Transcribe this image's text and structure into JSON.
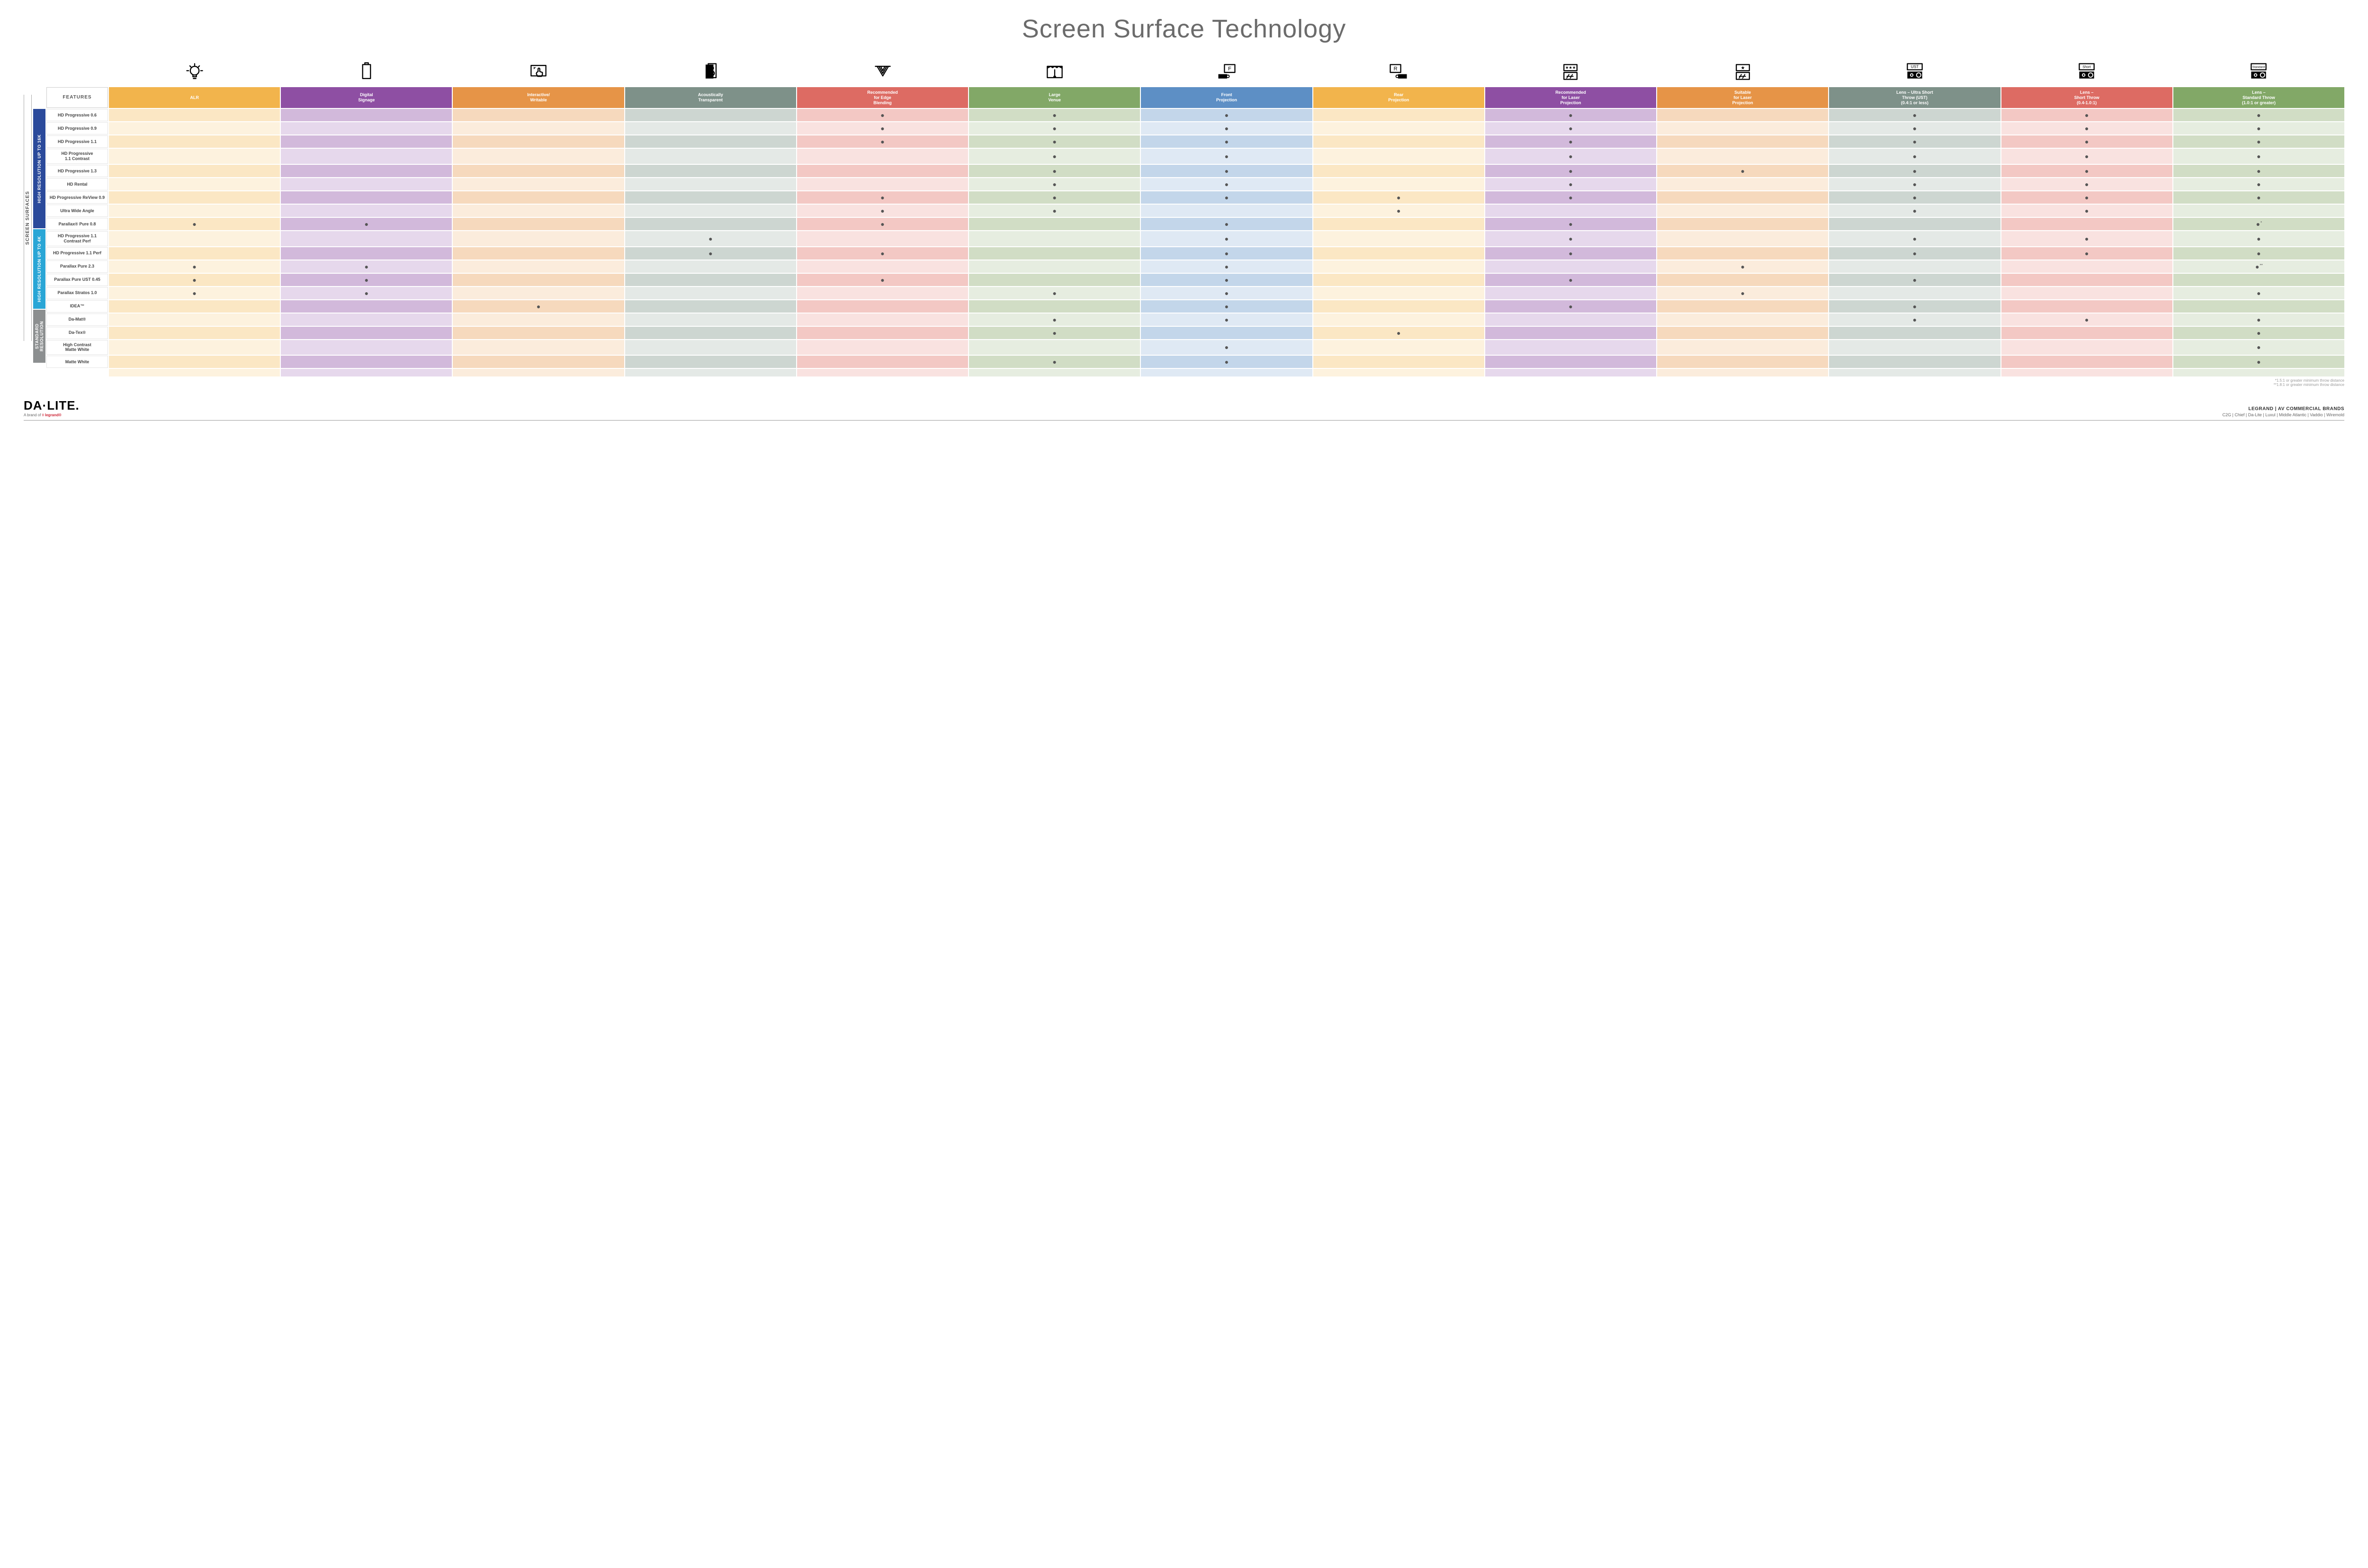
{
  "title": "Screen Surface Technology",
  "outer_label": "SCREEN SURFACES",
  "features_header": "FEATURES",
  "columns": [
    {
      "label": "ALR",
      "color": "#f2b44c",
      "light": "#fbe7c4",
      "lighter": "#fdf2de"
    },
    {
      "label": "Digital\nSignage",
      "color": "#8e4fa3",
      "light": "#d2b9db",
      "lighter": "#e6d8ec"
    },
    {
      "label": "Interactive/\nWritable",
      "color": "#e69447",
      "light": "#f6d9bd",
      "lighter": "#fbecdc"
    },
    {
      "label": "Acoustically\nTransparent",
      "color": "#7e9189",
      "light": "#cdd6d1",
      "lighter": "#e4e9e6"
    },
    {
      "label": "Recommended\nfor Edge\nBlending",
      "color": "#dd6b63",
      "light": "#f3c8c4",
      "lighter": "#f9e2e0"
    },
    {
      "label": "Large\nVenue",
      "color": "#82a867",
      "light": "#d1ddc5",
      "lighter": "#e6ede0"
    },
    {
      "label": "Front\nProjection",
      "color": "#5d8fc5",
      "light": "#c3d6ea",
      "lighter": "#dfe9f4"
    },
    {
      "label": "Rear\nProjection",
      "color": "#f2b44c",
      "light": "#fbe7c4",
      "lighter": "#fdf2de"
    },
    {
      "label": "Recommended\nfor Laser\nProjection",
      "color": "#8e4fa3",
      "light": "#d2b9db",
      "lighter": "#e6d8ec"
    },
    {
      "label": "Suitable\nfor Laser\nProjection",
      "color": "#e69447",
      "light": "#f6d9bd",
      "lighter": "#fbecdc"
    },
    {
      "label": "Lens – Ultra Short\nThrow (UST)\n(0.4:1 or less)",
      "color": "#7e9189",
      "light": "#cdd6d1",
      "lighter": "#e4e9e6"
    },
    {
      "label": "Lens –\nShort Throw\n(0.4-1.0:1)",
      "color": "#dd6b63",
      "light": "#f3c8c4",
      "lighter": "#f9e2e0"
    },
    {
      "label": "Lens –\nStandard Throw\n(1.0:1 or greater)",
      "color": "#82a867",
      "light": "#d1ddc5",
      "lighter": "#e6ede0"
    }
  ],
  "groups": [
    {
      "label": "HIGH RESOLUTION UP TO 16K",
      "color": "#2b4a9b",
      "rows": [
        {
          "label": "HD Progressive 0.6",
          "dots": [
            0,
            0,
            0,
            0,
            1,
            1,
            1,
            0,
            1,
            0,
            1,
            1,
            1
          ]
        },
        {
          "label": "HD Progressive 0.9",
          "dots": [
            0,
            0,
            0,
            0,
            1,
            1,
            1,
            0,
            1,
            0,
            1,
            1,
            1
          ]
        },
        {
          "label": "HD Progressive 1.1",
          "dots": [
            0,
            0,
            0,
            0,
            1,
            1,
            1,
            0,
            1,
            0,
            1,
            1,
            1
          ]
        },
        {
          "label": "HD Progressive\n1.1 Contrast",
          "dots": [
            0,
            0,
            0,
            0,
            0,
            1,
            1,
            0,
            1,
            0,
            1,
            1,
            1
          ]
        },
        {
          "label": "HD Progressive 1.3",
          "dots": [
            0,
            0,
            0,
            0,
            0,
            1,
            1,
            0,
            1,
            1,
            1,
            1,
            1
          ]
        },
        {
          "label": "HD Rental",
          "dots": [
            0,
            0,
            0,
            0,
            0,
            1,
            1,
            0,
            1,
            0,
            1,
            1,
            1
          ]
        },
        {
          "label": "HD Progressive ReView 0.9",
          "dots": [
            0,
            0,
            0,
            0,
            1,
            1,
            1,
            1,
            1,
            0,
            1,
            1,
            1
          ]
        },
        {
          "label": "Ultra Wide Angle",
          "dots": [
            0,
            0,
            0,
            0,
            1,
            1,
            0,
            1,
            0,
            0,
            1,
            1,
            0
          ]
        },
        {
          "label": "Parallax® Pure 0.8",
          "dots": [
            1,
            1,
            0,
            0,
            1,
            0,
            1,
            0,
            1,
            0,
            0,
            0,
            "*"
          ]
        }
      ]
    },
    {
      "label": "HIGH RESOLUTION UP TO 4K",
      "color": "#2aa6d6",
      "rows": [
        {
          "label": "HD Progressive 1.1\nContrast Perf",
          "dots": [
            0,
            0,
            0,
            1,
            0,
            0,
            1,
            0,
            1,
            0,
            1,
            1,
            1
          ]
        },
        {
          "label": "HD Progressive 1.1 Perf",
          "dots": [
            0,
            0,
            0,
            1,
            1,
            0,
            1,
            0,
            1,
            0,
            1,
            1,
            1
          ]
        },
        {
          "label": "Parallax Pure 2.3",
          "dots": [
            1,
            1,
            0,
            0,
            0,
            0,
            1,
            0,
            0,
            1,
            0,
            0,
            "**"
          ]
        },
        {
          "label": "Parallax Pure UST 0.45",
          "dots": [
            1,
            1,
            0,
            0,
            1,
            0,
            1,
            0,
            1,
            0,
            1,
            0,
            0
          ]
        },
        {
          "label": "Parallax Stratos 1.0",
          "dots": [
            1,
            1,
            0,
            0,
            0,
            1,
            1,
            0,
            0,
            1,
            0,
            0,
            1
          ]
        },
        {
          "label": "IDEA™",
          "dots": [
            0,
            0,
            1,
            0,
            0,
            0,
            1,
            0,
            1,
            0,
            1,
            0,
            0
          ]
        }
      ]
    },
    {
      "label": "STANDARD\nRESOLUTION",
      "color": "#8c8f90",
      "rows": [
        {
          "label": "Da-Mat®",
          "dots": [
            0,
            0,
            0,
            0,
            0,
            1,
            1,
            0,
            0,
            0,
            1,
            1,
            1
          ]
        },
        {
          "label": "Da-Tex®",
          "dots": [
            0,
            0,
            0,
            0,
            0,
            1,
            0,
            1,
            0,
            0,
            0,
            0,
            1
          ]
        },
        {
          "label": "High Contrast\nMatte White",
          "dots": [
            0,
            0,
            0,
            0,
            0,
            0,
            1,
            0,
            0,
            0,
            0,
            0,
            1
          ]
        },
        {
          "label": "Matte White",
          "dots": [
            0,
            0,
            0,
            0,
            0,
            1,
            1,
            0,
            0,
            0,
            0,
            0,
            1
          ]
        }
      ]
    }
  ],
  "footnotes": [
    "*1.5:1 or greater minimum throw distance",
    "**1.8:1 or greater minimum throw distance"
  ],
  "logo": {
    "main": "DA·LITE.",
    "sub_prefix": "A brand of ",
    "sub_brand": "◊ legrand®"
  },
  "footer": {
    "line1": "LEGRAND | AV COMMERCIAL BRANDS",
    "line2": "C2G  |  Chief  |  Da-Lite  |  Luxul  |  Middle Atlantic  |  Vaddio  |  Wiremold"
  },
  "icons": [
    "bulb",
    "signage",
    "touch",
    "speaker",
    "cone",
    "venue",
    "front",
    "rear",
    "laser-rec",
    "laser-suit",
    "ust",
    "short",
    "standard"
  ]
}
